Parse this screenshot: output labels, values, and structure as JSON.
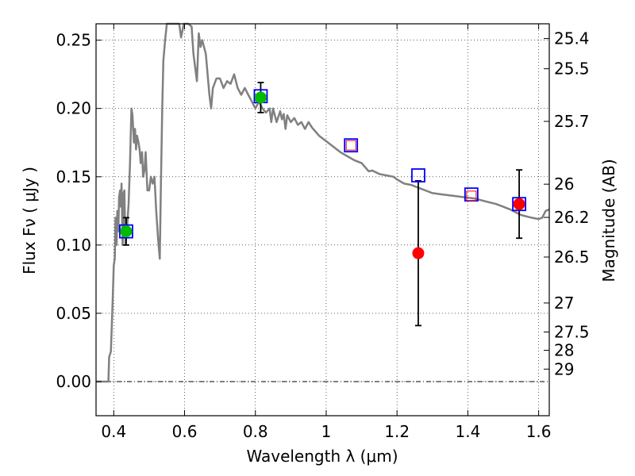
{
  "chart_data": {
    "type": "scatter",
    "xlabel": "Wavelength  λ (μm)",
    "ylabel": "Flux  Fν  ( μJy )",
    "y2label": "Magnitude (AB)",
    "xlim": [
      0.35,
      1.63
    ],
    "ylim": [
      -0.025,
      0.262
    ],
    "grid": true,
    "x_ticks": [
      {
        "value": 0.4,
        "label": "0.4"
      },
      {
        "value": 0.6,
        "label": "0.6"
      },
      {
        "value": 0.8,
        "label": "0.8"
      },
      {
        "value": 1.0,
        "label": "1"
      },
      {
        "value": 1.2,
        "label": "1.2"
      },
      {
        "value": 1.4,
        "label": "1.4"
      },
      {
        "value": 1.6,
        "label": "1.6"
      }
    ],
    "y_ticks": [
      {
        "value": 0.0,
        "label": "0.00"
      },
      {
        "value": 0.05,
        "label": "0.05"
      },
      {
        "value": 0.1,
        "label": "0.10"
      },
      {
        "value": 0.15,
        "label": "0.15"
      },
      {
        "value": 0.2,
        "label": "0.20"
      },
      {
        "value": 0.25,
        "label": "0.25"
      }
    ],
    "mag_ticks": [
      {
        "mag": 25.4,
        "label": "25.4"
      },
      {
        "mag": 25.5,
        "label": "25.5"
      },
      {
        "mag": 25.7,
        "label": "25.7"
      },
      {
        "mag": 26,
        "label": "26"
      },
      {
        "mag": 26.2,
        "label": "26.2"
      },
      {
        "mag": 26.5,
        "label": "26.5"
      },
      {
        "mag": 27,
        "label": "27"
      },
      {
        "mag": 27.5,
        "label": "27.5"
      },
      {
        "mag": 28,
        "label": "28"
      },
      {
        "mag": 29,
        "label": "29"
      }
    ],
    "model_spectrum": {
      "color": "#808080",
      "points": [
        [
          0.35,
          0.0
        ],
        [
          0.385,
          0.0
        ],
        [
          0.387,
          0.018
        ],
        [
          0.392,
          0.022
        ],
        [
          0.397,
          0.06
        ],
        [
          0.4,
          0.085
        ],
        [
          0.403,
          0.09
        ],
        [
          0.405,
          0.12
        ],
        [
          0.408,
          0.1
        ],
        [
          0.41,
          0.125
        ],
        [
          0.413,
          0.11
        ],
        [
          0.415,
          0.135
        ],
        [
          0.418,
          0.14
        ],
        [
          0.42,
          0.128
        ],
        [
          0.422,
          0.145
        ],
        [
          0.425,
          0.1
        ],
        [
          0.428,
          0.138
        ],
        [
          0.43,
          0.14
        ],
        [
          0.433,
          0.1
        ],
        [
          0.437,
          0.11
        ],
        [
          0.442,
          0.13
        ],
        [
          0.446,
          0.16
        ],
        [
          0.45,
          0.2
        ],
        [
          0.453,
          0.195
        ],
        [
          0.457,
          0.175
        ],
        [
          0.46,
          0.185
        ],
        [
          0.463,
          0.17
        ],
        [
          0.466,
          0.18
        ],
        [
          0.47,
          0.175
        ],
        [
          0.473,
          0.17
        ],
        [
          0.476,
          0.16
        ],
        [
          0.48,
          0.168
        ],
        [
          0.483,
          0.15
        ],
        [
          0.487,
          0.155
        ],
        [
          0.49,
          0.168
        ],
        [
          0.495,
          0.14
        ],
        [
          0.5,
          0.14
        ],
        [
          0.505,
          0.15
        ],
        [
          0.51,
          0.145
        ],
        [
          0.515,
          0.15
        ],
        [
          0.52,
          0.125
        ],
        [
          0.525,
          0.105
        ],
        [
          0.53,
          0.09
        ],
        [
          0.533,
          0.14
        ],
        [
          0.537,
          0.2
        ],
        [
          0.54,
          0.235
        ],
        [
          0.545,
          0.25
        ],
        [
          0.55,
          0.262
        ],
        [
          0.56,
          0.262
        ],
        [
          0.57,
          0.262
        ],
        [
          0.585,
          0.262
        ],
        [
          0.59,
          0.252
        ],
        [
          0.598,
          0.262
        ],
        [
          0.61,
          0.262
        ],
        [
          0.62,
          0.26
        ],
        [
          0.625,
          0.24
        ],
        [
          0.63,
          0.23
        ],
        [
          0.635,
          0.22
        ],
        [
          0.64,
          0.255
        ],
        [
          0.645,
          0.245
        ],
        [
          0.65,
          0.25
        ],
        [
          0.66,
          0.24
        ],
        [
          0.67,
          0.21
        ],
        [
          0.675,
          0.2
        ],
        [
          0.68,
          0.215
        ],
        [
          0.69,
          0.222
        ],
        [
          0.7,
          0.222
        ],
        [
          0.71,
          0.215
        ],
        [
          0.72,
          0.22
        ],
        [
          0.73,
          0.218
        ],
        [
          0.74,
          0.225
        ],
        [
          0.75,
          0.215
        ],
        [
          0.76,
          0.21
        ],
        [
          0.77,
          0.215
        ],
        [
          0.78,
          0.21
        ],
        [
          0.79,
          0.205
        ],
        [
          0.8,
          0.2
        ],
        [
          0.81,
          0.205
        ],
        [
          0.82,
          0.2
        ],
        [
          0.83,
          0.197
        ],
        [
          0.84,
          0.2
        ],
        [
          0.845,
          0.19
        ],
        [
          0.85,
          0.2
        ],
        [
          0.86,
          0.19
        ],
        [
          0.87,
          0.198
        ],
        [
          0.875,
          0.192
        ],
        [
          0.88,
          0.196
        ],
        [
          0.885,
          0.185
        ],
        [
          0.89,
          0.195
        ],
        [
          0.9,
          0.19
        ],
        [
          0.91,
          0.193
        ],
        [
          0.92,
          0.188
        ],
        [
          0.93,
          0.19
        ],
        [
          0.94,
          0.185
        ],
        [
          0.95,
          0.19
        ],
        [
          0.96,
          0.186
        ],
        [
          0.97,
          0.183
        ],
        [
          0.98,
          0.18
        ],
        [
          0.99,
          0.178
        ],
        [
          1.0,
          0.176
        ],
        [
          1.02,
          0.172
        ],
        [
          1.04,
          0.168
        ],
        [
          1.06,
          0.165
        ],
        [
          1.08,
          0.162
        ],
        [
          1.1,
          0.16
        ],
        [
          1.11,
          0.157
        ],
        [
          1.12,
          0.154
        ],
        [
          1.13,
          0.1545
        ],
        [
          1.15,
          0.152
        ],
        [
          1.17,
          0.151
        ],
        [
          1.19,
          0.15
        ],
        [
          1.2,
          0.148
        ],
        [
          1.22,
          0.145
        ],
        [
          1.24,
          0.144
        ],
        [
          1.26,
          0.142
        ],
        [
          1.28,
          0.14
        ],
        [
          1.3,
          0.138
        ],
        [
          1.33,
          0.137
        ],
        [
          1.36,
          0.136
        ],
        [
          1.39,
          0.135
        ],
        [
          1.42,
          0.134
        ],
        [
          1.45,
          0.132
        ],
        [
          1.48,
          0.13
        ],
        [
          1.5,
          0.128
        ],
        [
          1.52,
          0.126
        ],
        [
          1.55,
          0.122
        ],
        [
          1.58,
          0.12
        ],
        [
          1.6,
          0.119
        ],
        [
          1.61,
          0.12
        ],
        [
          1.62,
          0.125
        ],
        [
          1.63,
          0.126
        ]
      ]
    },
    "model_photometry": {
      "marker": "square",
      "edge_color": "#0000ff",
      "points": [
        {
          "x": 0.435,
          "y": 0.11
        },
        {
          "x": 0.815,
          "y": 0.209
        },
        {
          "x": 1.07,
          "y": 0.173
        },
        {
          "x": 1.26,
          "y": 0.151
        },
        {
          "x": 1.41,
          "y": 0.137
        },
        {
          "x": 1.545,
          "y": 0.13
        }
      ]
    },
    "upper_limits": {
      "marker": "square",
      "edge_color": "#ff0000",
      "points": [
        {
          "x": 1.07,
          "y": 0.173
        },
        {
          "x": 1.41,
          "y": 0.136
        }
      ]
    },
    "detections_optical": {
      "marker": "circle",
      "color": "#00bb00",
      "points": [
        {
          "x": 0.435,
          "y": 0.11,
          "err": 0.01
        },
        {
          "x": 0.815,
          "y": 0.208,
          "err": 0.011
        }
      ]
    },
    "detections_ir": {
      "marker": "circle",
      "color": "#ff0000",
      "points": [
        {
          "x": 1.26,
          "y": 0.094,
          "err": 0.053
        },
        {
          "x": 1.545,
          "y": 0.13,
          "err": 0.025
        }
      ]
    }
  }
}
